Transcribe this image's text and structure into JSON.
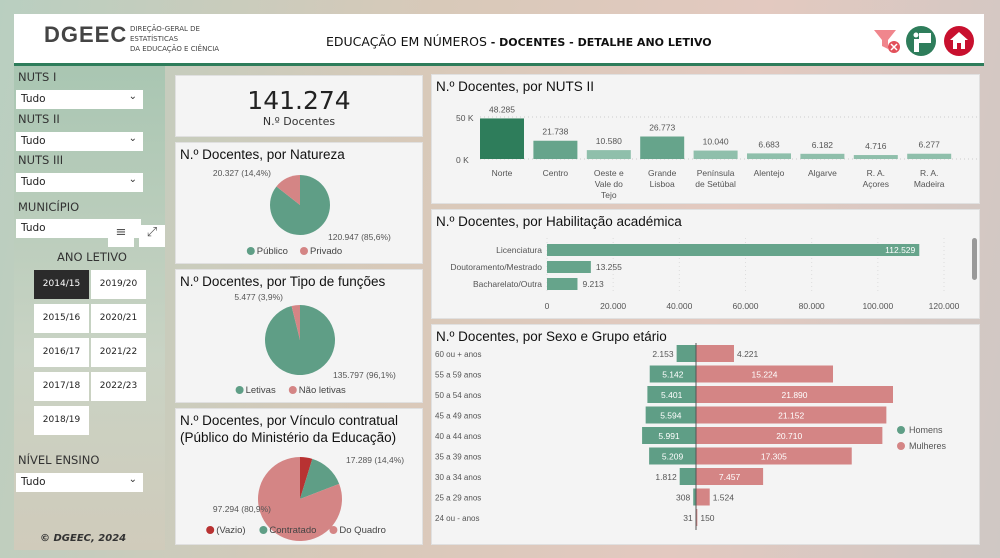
{
  "header": {
    "logo": "DGEEC",
    "logo_sub_1": "DIREÇÃO-GERAL DE ESTATÍSTICAS",
    "logo_sub_2": "DA EDUCAÇÃO E CIÊNCIA",
    "title_main": "EDUCAÇÃO EM NÚMEROS",
    "title_sub": " - DOCENTES - DETALHE ANO LETIVO",
    "icons": [
      "clear-filter-icon",
      "teacher-icon",
      "home-icon"
    ]
  },
  "colors": {
    "green": "#5f9e86",
    "dark_green": "#2e7d5b",
    "pink": "#d48585",
    "red": "#b83232",
    "dark": "#2b2b2b"
  },
  "filters": {
    "nuts1": {
      "label": "NUTS I",
      "value": "Tudo"
    },
    "nuts2": {
      "label": "NUTS II",
      "value": "Tudo"
    },
    "nuts3": {
      "label": "NUTS III",
      "value": "Tudo"
    },
    "municipio": {
      "label": "MUNICÍPIO",
      "value": "Tudo"
    },
    "ano_letivo": {
      "label": "ANO LETIVO",
      "options": [
        "2014/15",
        "2019/20",
        "2015/16",
        "2020/21",
        "2016/17",
        "2021/22",
        "2017/18",
        "2022/23",
        "2018/19"
      ],
      "selected": "2014/15"
    },
    "nivel": {
      "label": "NÍVEL ENSINO",
      "value": "Tudo"
    }
  },
  "footer": "© DGEEC, 2024",
  "kpi": {
    "value": "141.274",
    "label": "N.º Docentes"
  },
  "chart_data": [
    {
      "type": "pie",
      "title": "N.º Docentes, por Natureza",
      "labels": [
        "Público",
        "Privado"
      ],
      "values": [
        120947,
        20327
      ],
      "data_labels": [
        "120.947 (85,6%)",
        "20.327 (14,4%)"
      ],
      "colors": [
        "#5f9e86",
        "#d48585"
      ],
      "legend": "bottom"
    },
    {
      "type": "pie",
      "title": "N.º Docentes, por Tipo de funções",
      "labels": [
        "Letivas",
        "Não letivas"
      ],
      "values": [
        135797,
        5477
      ],
      "data_labels": [
        "135.797 (96,1%)",
        "5.477 (3,9%)"
      ],
      "colors": [
        "#5f9e86",
        "#d48585"
      ],
      "legend": "bottom"
    },
    {
      "type": "pie",
      "title": "N.º Docentes, por Vínculo contratual",
      "subtitle": "(Público do Ministério da Educação)",
      "labels": [
        "(Vazio)",
        "Contratado",
        "Do Quadro"
      ],
      "values": [
        5700,
        17289,
        97294
      ],
      "data_labels": [
        "",
        "17.289 (14,4%)",
        "97.294 (80,9%)"
      ],
      "colors": [
        "#b83232",
        "#5f9e86",
        "#d48585"
      ],
      "legend": "bottom"
    },
    {
      "type": "bar",
      "title": "N.º Docentes, por NUTS II",
      "categories": [
        "Norte",
        "Centro",
        "Oeste e Vale do Tejo",
        "Grande Lisboa",
        "Península de Setúbal",
        "Alentejo",
        "Algarve",
        "R. A. Açores",
        "R. A. Madeira"
      ],
      "values": [
        48285,
        21738,
        10580,
        26773,
        10040,
        6683,
        6182,
        4716,
        6277
      ],
      "data_labels": [
        "48.285",
        "21.738",
        "10.580",
        "26.773",
        "10.040",
        "6.683",
        "6.182",
        "4.716",
        "6.277"
      ],
      "yticks": [
        "0 K",
        "50 K"
      ],
      "ylim": [
        0,
        50000
      ]
    },
    {
      "type": "bar",
      "orientation": "horizontal",
      "title": "N.º Docentes, por Habilitação académica",
      "categories": [
        "Licenciatura",
        "Doutoramento/Mestrado",
        "Bacharelato/Outra"
      ],
      "values": [
        112529,
        13255,
        9213
      ],
      "data_labels": [
        "112.529",
        "13.255",
        "9.213"
      ],
      "xticks": [
        "0",
        "20.000",
        "40.000",
        "60.000",
        "80.000",
        "100.000",
        "120.000"
      ],
      "xlim": [
        0,
        120000
      ]
    },
    {
      "type": "bar",
      "orientation": "horizontal-diverging",
      "title": "N.º Docentes, por Sexo e Grupo etário",
      "categories": [
        "60 ou + anos",
        "55 a 59 anos",
        "50 a 54 anos",
        "45 a 49 anos",
        "40 a 44 anos",
        "35 a 39 anos",
        "30 a 34 anos",
        "25 a 29 anos",
        "24 ou - anos"
      ],
      "series": [
        {
          "name": "Homens",
          "values": [
            2153,
            5142,
            5401,
            5594,
            5991,
            5209,
            1812,
            308,
            31
          ],
          "data_labels": [
            "2.153",
            "5.142",
            "5.401",
            "5.594",
            "5.991",
            "5.209",
            "1.812",
            "308",
            "31"
          ]
        },
        {
          "name": "Mulheres",
          "values": [
            4221,
            15224,
            21890,
            21152,
            20710,
            17305,
            7457,
            1524,
            150
          ],
          "data_labels": [
            "4.221",
            "15.224",
            "21.890",
            "21.152",
            "20.710",
            "17.305",
            "7.457",
            "1.524",
            "150"
          ]
        }
      ],
      "legend": "right"
    }
  ]
}
